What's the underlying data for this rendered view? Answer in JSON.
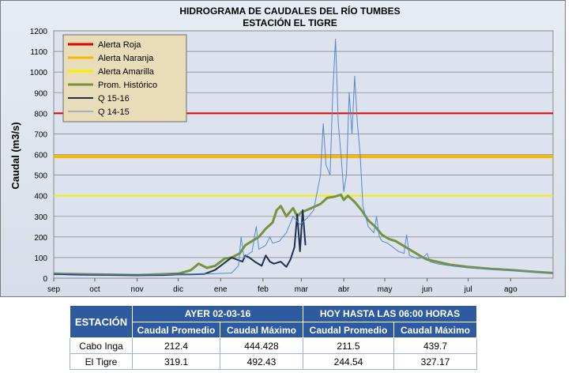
{
  "chart_data": {
    "type": "line",
    "title": "HIDROGRAMA  DE CAUDALES  DEL RÍO TUMBES",
    "subtitle": "ESTACIÓN  EL TIGRE",
    "ylabel": "Caudal (m3/s)",
    "xlabel": "",
    "ylim": [
      0,
      1200
    ],
    "yticks": [
      0,
      100,
      200,
      300,
      400,
      500,
      600,
      700,
      800,
      900,
      1000,
      1100,
      1200
    ],
    "xlim": [
      0,
      365
    ],
    "xticks": [
      {
        "label": "sep",
        "x": 0
      },
      {
        "label": "oct",
        "x": 30
      },
      {
        "label": "nov",
        "x": 61
      },
      {
        "label": "dic",
        "x": 91
      },
      {
        "label": "ene",
        "x": 122
      },
      {
        "label": "feb",
        "x": 153
      },
      {
        "label": "mar",
        "x": 181
      },
      {
        "label": "abr",
        "x": 212
      },
      {
        "label": "may",
        "x": 242
      },
      {
        "label": "jun",
        "x": 273
      },
      {
        "label": "jul",
        "x": 303
      },
      {
        "label": "ago",
        "x": 334
      }
    ],
    "grid": true,
    "legend_position": "top-left",
    "thresholds": [
      {
        "name": "Alerta Roja",
        "value": 800,
        "color": "#e00000"
      },
      {
        "name": "Alerta Naranja",
        "value": 590,
        "color": "#f5b800"
      },
      {
        "name": "Alerta Amarilla",
        "value": 400,
        "color": "#f5f000"
      }
    ],
    "series": [
      {
        "name": "Prom. Histórico",
        "color": "#77933c",
        "width": 3,
        "points": [
          [
            0,
            22
          ],
          [
            30,
            18
          ],
          [
            61,
            15
          ],
          [
            91,
            22
          ],
          [
            100,
            38
          ],
          [
            106,
            70
          ],
          [
            112,
            50
          ],
          [
            118,
            60
          ],
          [
            125,
            95
          ],
          [
            130,
            100
          ],
          [
            136,
            120
          ],
          [
            140,
            160
          ],
          [
            145,
            180
          ],
          [
            150,
            200
          ],
          [
            155,
            240
          ],
          [
            160,
            270
          ],
          [
            163,
            330
          ],
          [
            166,
            350
          ],
          [
            170,
            300
          ],
          [
            175,
            340
          ],
          [
            178,
            300
          ],
          [
            181,
            320
          ],
          [
            185,
            330
          ],
          [
            190,
            345
          ],
          [
            195,
            360
          ],
          [
            200,
            390
          ],
          [
            205,
            395
          ],
          [
            210,
            405
          ],
          [
            212,
            380
          ],
          [
            215,
            400
          ],
          [
            220,
            370
          ],
          [
            225,
            330
          ],
          [
            230,
            280
          ],
          [
            235,
            250
          ],
          [
            240,
            210
          ],
          [
            245,
            190
          ],
          [
            250,
            180
          ],
          [
            255,
            160
          ],
          [
            260,
            140
          ],
          [
            265,
            120
          ],
          [
            270,
            100
          ],
          [
            273,
            90
          ],
          [
            280,
            80
          ],
          [
            290,
            65
          ],
          [
            303,
            55
          ],
          [
            320,
            45
          ],
          [
            334,
            40
          ],
          [
            350,
            32
          ],
          [
            365,
            25
          ]
        ]
      },
      {
        "name": "Q 15-16",
        "color": "#1f2f4f",
        "width": 2,
        "points": [
          [
            0,
            20
          ],
          [
            20,
            17
          ],
          [
            40,
            16
          ],
          [
            61,
            14
          ],
          [
            80,
            15
          ],
          [
            91,
            18
          ],
          [
            100,
            18
          ],
          [
            110,
            20
          ],
          [
            118,
            40
          ],
          [
            122,
            60
          ],
          [
            126,
            80
          ],
          [
            130,
            100
          ],
          [
            134,
            90
          ],
          [
            138,
            80
          ],
          [
            140,
            110
          ],
          [
            143,
            100
          ],
          [
            147,
            80
          ],
          [
            152,
            60
          ],
          [
            155,
            110
          ],
          [
            158,
            80
          ],
          [
            161,
            70
          ],
          [
            166,
            80
          ],
          [
            170,
            55
          ],
          [
            173,
            90
          ],
          [
            176,
            150
          ],
          [
            178,
            310
          ],
          [
            180,
            130
          ],
          [
            182,
            330
          ],
          [
            184,
            160
          ]
        ]
      },
      {
        "name": "Q 14-15",
        "color": "#5b86c8",
        "width": 1,
        "points": [
          [
            0,
            22
          ],
          [
            30,
            18
          ],
          [
            61,
            15
          ],
          [
            91,
            18
          ],
          [
            110,
            20
          ],
          [
            130,
            25
          ],
          [
            135,
            60
          ],
          [
            137,
            200
          ],
          [
            139,
            100
          ],
          [
            145,
            130
          ],
          [
            148,
            250
          ],
          [
            150,
            140
          ],
          [
            155,
            160
          ],
          [
            158,
            200
          ],
          [
            160,
            170
          ],
          [
            165,
            180
          ],
          [
            170,
            220
          ],
          [
            175,
            300
          ],
          [
            180,
            260
          ],
          [
            185,
            290
          ],
          [
            190,
            330
          ],
          [
            195,
            500
          ],
          [
            197,
            750
          ],
          [
            199,
            550
          ],
          [
            202,
            500
          ],
          [
            204,
            900
          ],
          [
            206,
            1160
          ],
          [
            208,
            750
          ],
          [
            210,
            600
          ],
          [
            212,
            420
          ],
          [
            214,
            500
          ],
          [
            216,
            900
          ],
          [
            218,
            700
          ],
          [
            220,
            980
          ],
          [
            222,
            750
          ],
          [
            224,
            600
          ],
          [
            226,
            350
          ],
          [
            230,
            250
          ],
          [
            234,
            220
          ],
          [
            236,
            300
          ],
          [
            238,
            200
          ],
          [
            240,
            180
          ],
          [
            244,
            170
          ],
          [
            248,
            150
          ],
          [
            252,
            130
          ],
          [
            256,
            120
          ],
          [
            258,
            210
          ],
          [
            260,
            110
          ],
          [
            266,
            95
          ],
          [
            270,
            100
          ],
          [
            273,
            120
          ],
          [
            275,
            80
          ],
          [
            280,
            70
          ],
          [
            290,
            60
          ],
          [
            303,
            50
          ],
          [
            320,
            42
          ],
          [
            334,
            38
          ],
          [
            350,
            30
          ],
          [
            365,
            25
          ]
        ]
      }
    ]
  },
  "legend": {
    "items": [
      {
        "label": "Alerta Roja",
        "color": "#e00000",
        "width": 3
      },
      {
        "label": "Alerta Naranja",
        "color": "#f5b800",
        "width": 3
      },
      {
        "label": "Alerta Amarilla",
        "color": "#f5f000",
        "width": 3
      },
      {
        "label": "Prom. Histórico",
        "color": "#77933c",
        "width": 3
      },
      {
        "label": "Q 15-16",
        "color": "#1f2f4f",
        "width": 2
      },
      {
        "label": "Q 14-15",
        "color": "#5b86c8",
        "width": 1
      }
    ]
  },
  "table": {
    "station_header": "ESTACIÓN",
    "group_yesterday": "AYER 02-03-16",
    "group_today": "HOY HASTA  LAS 06:00 HORAS",
    "col_avg": "Caudal Promedio",
    "col_max": "Caudal Máximo",
    "rows": [
      {
        "station": "Cabo Inga",
        "y_avg": "212.4",
        "y_max": "444.428",
        "t_avg": "211.5",
        "t_max": "439.7"
      },
      {
        "station": "El Tigre",
        "y_avg": "319.1",
        "y_max": "492.43",
        "t_avg": "244.54",
        "t_max": "327.17"
      }
    ]
  }
}
